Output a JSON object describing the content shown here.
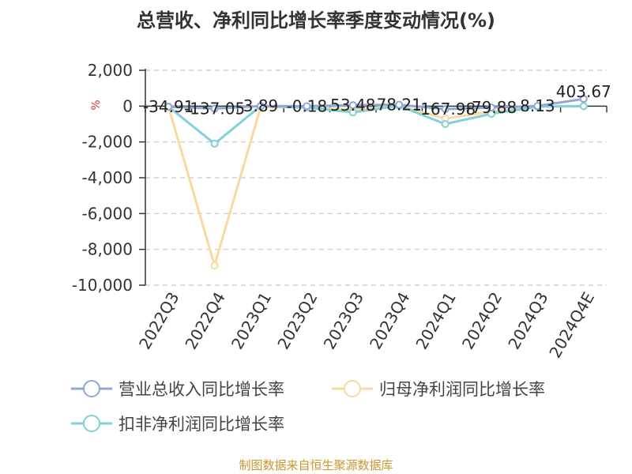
{
  "title": "总营收、净利同比增长率季度变动情况(%)",
  "source": "制图数据来自恒生聚源数据库",
  "chart_data": {
    "type": "line",
    "title": "总营收、净利同比增长率季度变动情况(%)",
    "ylabel": "%",
    "xlabel": "",
    "ylim": [
      -10000,
      2000
    ],
    "yticks": [
      2000,
      0,
      -2000,
      -4000,
      -6000,
      -8000,
      -10000
    ],
    "ytick_labels": [
      "2,000",
      "0",
      "-2,000",
      "-4,000",
      "-6,000",
      "-8,000",
      "-10,000"
    ],
    "grid": true,
    "legend_position": "bottom",
    "categories": [
      "2022Q3",
      "2022Q4",
      "2023Q1",
      "2023Q2",
      "2023Q3",
      "2023Q4",
      "2024Q1",
      "2024Q2",
      "2024Q3",
      "2024Q4E"
    ],
    "series": [
      {
        "name": "营业总收入同比增长率",
        "color": "#8fa8d8",
        "values": [
          -34.91,
          -137.05,
          3.89,
          -0.18,
          53.48,
          78.21,
          -167.98,
          -79.88,
          8.13,
          403.67
        ],
        "labels": [
          "-34.91",
          "-137.05",
          "3.89",
          "-0.18",
          "53.48",
          "78.21",
          "-167.98",
          "-79.88",
          "8.13",
          "403.67"
        ]
      },
      {
        "name": "归母净利润同比增长率",
        "color": "#f8d9a0",
        "values": [
          -20,
          -8900,
          -50,
          -60,
          -200,
          30,
          -700,
          -300,
          -20,
          10
        ]
      },
      {
        "name": "扣非净利润同比增长率",
        "color": "#82d1d9",
        "values": [
          -30,
          -2100,
          10,
          -80,
          -350,
          20,
          -1000,
          -430,
          -30,
          0
        ]
      }
    ]
  }
}
